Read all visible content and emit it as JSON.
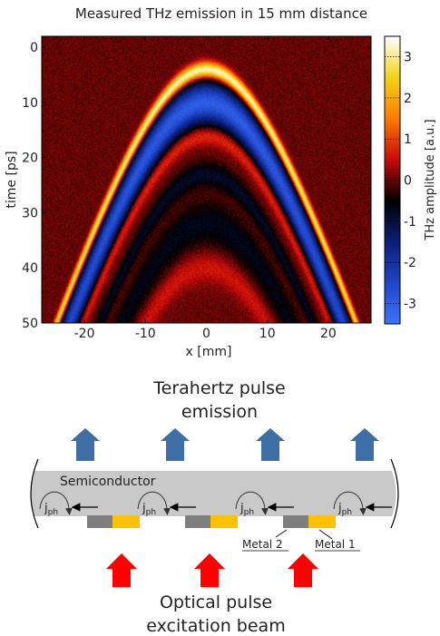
{
  "chart_data": {
    "type": "heatmap",
    "title": "Measured THz emission in 15 mm distance",
    "xlabel": "x [mm]",
    "ylabel": "time [ps]",
    "colorbar_label": "THz amplitude [a.u.]",
    "xlim": [
      -27,
      27
    ],
    "ylim": [
      50,
      -2
    ],
    "clim": [
      -3.5,
      3.5
    ],
    "xticks": [
      "-20",
      "-10",
      "0",
      "10",
      "20"
    ],
    "yticks": [
      "0",
      "10",
      "20",
      "30",
      "40",
      "50"
    ],
    "cticks": [
      "3",
      "2",
      "1",
      "0",
      "-1",
      "-2",
      "-3"
    ],
    "colormap_stops": [
      "#ffffff",
      "#f2d416",
      "#ff7a00",
      "#c80a0a",
      "#000000",
      "#0a1e78",
      "#1f45c8",
      "#3c74ff"
    ],
    "signal": {
      "shape": "hyperbola",
      "apex_x_mm": 0,
      "apex_time_ps": 4,
      "bands": [
        {
          "delay_ps": 0,
          "amplitude": 3.4,
          "width_ps": 1.0
        },
        {
          "delay_ps": 6,
          "amplitude": -3.0,
          "width_ps": 2.6
        },
        {
          "delay_ps": 12,
          "amplitude": 0.9,
          "width_ps": 1.2
        },
        {
          "delay_ps": 19,
          "amplitude": -0.8,
          "width_ps": 1.6
        },
        {
          "delay_ps": 28,
          "amplitude": -0.7,
          "width_ps": 3.0
        },
        {
          "delay_ps": 36,
          "amplitude": 0.6,
          "width_ps": 2.0
        }
      ]
    }
  },
  "schematic": {
    "top_label_line1": "Terahertz pulse",
    "top_label_line2": "emission",
    "semiconductor_label": "Semiconductor",
    "current_label_main": "j",
    "current_label_sub": "ph",
    "metal2_label": "Metal 2",
    "metal1_label": "Metal 1",
    "bottom_label_line1": "Optical pulse",
    "bottom_label_line2": "excitation beam",
    "colors": {
      "substrate": "#c9c9c9",
      "metal1": "#ffc000",
      "metal2": "#7f7f7f",
      "thz_arrow": "#3d6fa6",
      "optical_arrow": "#ff0000"
    },
    "emitter_count": 4
  }
}
